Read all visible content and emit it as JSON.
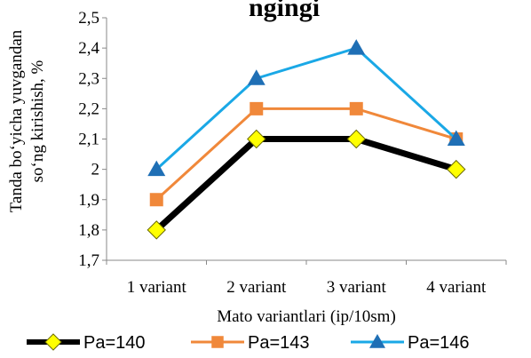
{
  "chart_data": {
    "type": "line",
    "title": "ngingi",
    "xlabel": "Mato variantlari (ip/10sm)",
    "ylabel_lines": [
      "Tanda bo‘yicha yuvgandan",
      "so‘ng kirishish, %"
    ],
    "categories": [
      "1 variant",
      "2 variant",
      "3 variant",
      "4 variant"
    ],
    "ylim": [
      1.7,
      2.5
    ],
    "yticks": [
      "1,7",
      "1,8",
      "1,9",
      "2",
      "2,1",
      "2,2",
      "2,3",
      "2,4",
      "2,5"
    ],
    "grid": false,
    "legend": "bottom",
    "series": [
      {
        "name": "Pa=140",
        "values": [
          1.8,
          2.1,
          2.1,
          2.0
        ],
        "color": "#000000",
        "marker": "diamond",
        "marker_color": "#ffff00"
      },
      {
        "name": "Pa=143",
        "values": [
          1.9,
          2.2,
          2.2,
          2.1
        ],
        "color": "#f0883a",
        "marker": "square",
        "marker_color": "#f0883a"
      },
      {
        "name": "Pa=146",
        "values": [
          2.0,
          2.3,
          2.4,
          2.1
        ],
        "color": "#1aa8e6",
        "marker": "triangle",
        "marker_color": "#1f6fb5"
      }
    ]
  }
}
